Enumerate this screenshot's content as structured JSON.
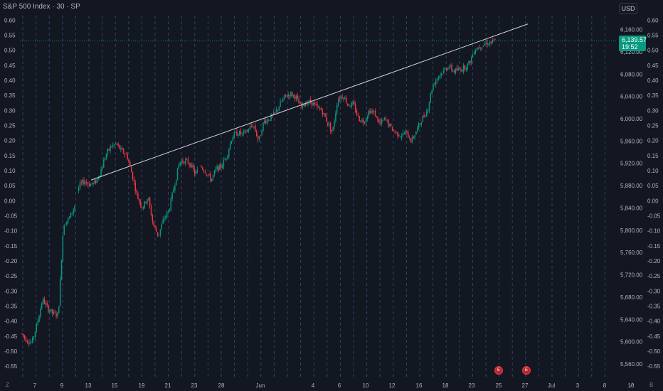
{
  "header": {
    "title": "S&P 500 Index · 30 · SP"
  },
  "currency_button": "USD",
  "price_label": {
    "price": "6,139.57",
    "countdown": "19:52"
  },
  "bottom_left": "Z",
  "bottom_right": [
    "A",
    "B"
  ],
  "event_icons": [
    "E",
    "E"
  ],
  "colors": {
    "up": "#089981",
    "down": "#f23645",
    "background": "#131722",
    "grid": "#2a2e39",
    "trendline": "#d1d4dc",
    "session_line": "#3c6e9a"
  },
  "chart_data": {
    "type": "candlestick",
    "title": "S&P 500 Index · 30 · SP",
    "grid": false,
    "right_axis": {
      "label": "Price (USD)",
      "ticks": [
        "6,160.00",
        "6,120.00",
        "6,080.00",
        "6,040.00",
        "6,000.00",
        "5,960.00",
        "5,920.00",
        "5,880.00",
        "5,840.00",
        "5,800.00",
        "5,760.00",
        "5,720.00",
        "5,680.00",
        "5,640.00",
        "5,600.00",
        "5,560.00"
      ],
      "range": [
        5537,
        6185
      ]
    },
    "right_axis_secondary": {
      "ticks": [
        "0.60",
        "0.55",
        "0.50",
        "0.45",
        "0.40",
        "0.35",
        "0.30",
        "0.25",
        "0.20",
        "0.15",
        "0.10",
        "0.05",
        "0.00",
        "-0.05",
        "-0.10",
        "-0.15",
        "-0.20",
        "-0.25",
        "-0.30",
        "-0.35",
        "-0.40",
        "-0.45",
        "-0.50",
        "-0.55"
      ]
    },
    "left_axis": {
      "ticks": [
        "0.60",
        "0.55",
        "0.50",
        "0.45",
        "0.40",
        "0.35",
        "0.30",
        "0.25",
        "0.20",
        "0.15",
        "0.10",
        "0.05",
        "0.00",
        "-0.05",
        "-0.10",
        "-0.15",
        "-0.20",
        "-0.25",
        "-0.30",
        "-0.35",
        "-0.40",
        "-0.45",
        "-0.50",
        "-0.55"
      ],
      "range": [
        -0.585,
        0.615
      ]
    },
    "x_axis": {
      "labels": [
        "7",
        "9",
        "13",
        "15",
        "19",
        "21",
        "23",
        "28",
        "Jun",
        "4",
        "6",
        "10",
        "12",
        "16",
        "18",
        "23",
        "25",
        "27",
        "Jul",
        "3",
        "8",
        "10"
      ]
    },
    "series": [
      {
        "name": "S&P 500 Index",
        "path_points": [
          {
            "date": "May 5",
            "price": 5615
          },
          {
            "date": "May 6",
            "price": 5603
          },
          {
            "date": "May 7",
            "price": 5598
          },
          {
            "date": "May 8",
            "price": 5632
          },
          {
            "date": "May 8",
            "price": 5676
          },
          {
            "date": "May 8",
            "price": 5660
          },
          {
            "date": "May 9",
            "price": 5650
          },
          {
            "date": "May 9",
            "price": 5648
          },
          {
            "date": "May 12",
            "price": 5812
          },
          {
            "date": "May 12",
            "price": 5820
          },
          {
            "date": "May 12",
            "price": 5840
          },
          {
            "date": "May 12",
            "price": 5880
          },
          {
            "date": "May 13",
            "price": 5888
          },
          {
            "date": "May 14",
            "price": 5882
          },
          {
            "date": "May 15",
            "price": 5885
          },
          {
            "date": "May 16",
            "price": 5905
          },
          {
            "date": "May 16",
            "price": 5935
          },
          {
            "date": "May 19",
            "price": 5950
          },
          {
            "date": "May 19",
            "price": 5955
          },
          {
            "date": "May 20",
            "price": 5942
          },
          {
            "date": "May 21",
            "price": 5935
          },
          {
            "date": "May 21",
            "price": 5900
          },
          {
            "date": "May 21",
            "price": 5860
          },
          {
            "date": "May 22",
            "price": 5840
          },
          {
            "date": "May 22",
            "price": 5860
          },
          {
            "date": "May 23",
            "price": 5810
          },
          {
            "date": "May 23",
            "price": 5790
          },
          {
            "date": "May 23",
            "price": 5820
          },
          {
            "date": "May 23",
            "price": 5835
          },
          {
            "date": "May 27",
            "price": 5880
          },
          {
            "date": "May 27",
            "price": 5922
          },
          {
            "date": "May 28",
            "price": 5925
          },
          {
            "date": "May 28",
            "price": 5920
          },
          {
            "date": "May 29",
            "price": 5900
          },
          {
            "date": "May 29",
            "price": 5915
          },
          {
            "date": "May 30",
            "price": 5905
          },
          {
            "date": "May 30",
            "price": 5890
          },
          {
            "date": "May 30",
            "price": 5910
          },
          {
            "date": "Jun 2",
            "price": 5915
          },
          {
            "date": "Jun 2",
            "price": 5935
          },
          {
            "date": "Jun 3",
            "price": 5968
          },
          {
            "date": "Jun 3",
            "price": 5975
          },
          {
            "date": "Jun 4",
            "price": 5972
          },
          {
            "date": "Jun 4",
            "price": 5980
          },
          {
            "date": "Jun 5",
            "price": 5990
          },
          {
            "date": "Jun 5",
            "price": 5960
          },
          {
            "date": "Jun 6",
            "price": 5995
          },
          {
            "date": "Jun 6",
            "price": 6000
          },
          {
            "date": "Jun 9",
            "price": 6008
          },
          {
            "date": "Jun 10",
            "price": 6025
          },
          {
            "date": "Jun 11",
            "price": 6040
          },
          {
            "date": "Jun 11",
            "price": 6045
          },
          {
            "date": "Jun 11",
            "price": 6040
          },
          {
            "date": "Jun 12",
            "price": 6020
          },
          {
            "date": "Jun 12",
            "price": 6030
          },
          {
            "date": "Jun 12",
            "price": 6030
          },
          {
            "date": "Jun 13",
            "price": 6020
          },
          {
            "date": "Jun 13",
            "price": 6015
          },
          {
            "date": "Jun 13",
            "price": 5995
          },
          {
            "date": "Jun 13",
            "price": 5975
          },
          {
            "date": "Jun 16",
            "price": 6035
          },
          {
            "date": "Jun 16",
            "price": 6042
          },
          {
            "date": "Jun 17",
            "price": 6025
          },
          {
            "date": "Jun 17",
            "price": 6025
          },
          {
            "date": "Jun 17",
            "price": 6000
          },
          {
            "date": "Jun 18",
            "price": 5995
          },
          {
            "date": "Jun 18",
            "price": 6015
          },
          {
            "date": "Jun 18",
            "price": 6010
          },
          {
            "date": "Jun 20",
            "price": 5990
          },
          {
            "date": "Jun 20",
            "price": 6000
          },
          {
            "date": "Jun 20",
            "price": 5985
          },
          {
            "date": "Jun 20",
            "price": 5975
          },
          {
            "date": "Jun 23",
            "price": 5970
          },
          {
            "date": "Jun 23",
            "price": 5975
          },
          {
            "date": "Jun 23",
            "price": 5960
          },
          {
            "date": "Jun 23",
            "price": 5980
          },
          {
            "date": "Jun 23",
            "price": 6000
          },
          {
            "date": "Jun 23",
            "price": 6015
          },
          {
            "date": "Jun 24",
            "price": 6060
          },
          {
            "date": "Jun 24",
            "price": 6075
          },
          {
            "date": "Jun 24",
            "price": 6085
          },
          {
            "date": "Jun 25",
            "price": 6095
          },
          {
            "date": "Jun 25",
            "price": 6085
          },
          {
            "date": "Jun 25",
            "price": 6088
          },
          {
            "date": "Jun 25",
            "price": 6092
          },
          {
            "date": "Jun 26",
            "price": 6100
          },
          {
            "date": "Jun 26",
            "price": 6125
          },
          {
            "date": "Jun 26",
            "price": 6130
          },
          {
            "date": "Jun 26",
            "price": 6135
          },
          {
            "date": "Jun 27",
            "price": 6137
          },
          {
            "date": "Jun 27",
            "price": 6139.57
          }
        ]
      }
    ],
    "last_price": 6139.57,
    "annotations": [
      {
        "type": "trendline",
        "from": {
          "date": "May 13",
          "price": 5890
        },
        "to": {
          "date": "Jun 30",
          "price": 6170
        }
      },
      {
        "type": "horizontal",
        "price": 6139.57
      }
    ]
  }
}
